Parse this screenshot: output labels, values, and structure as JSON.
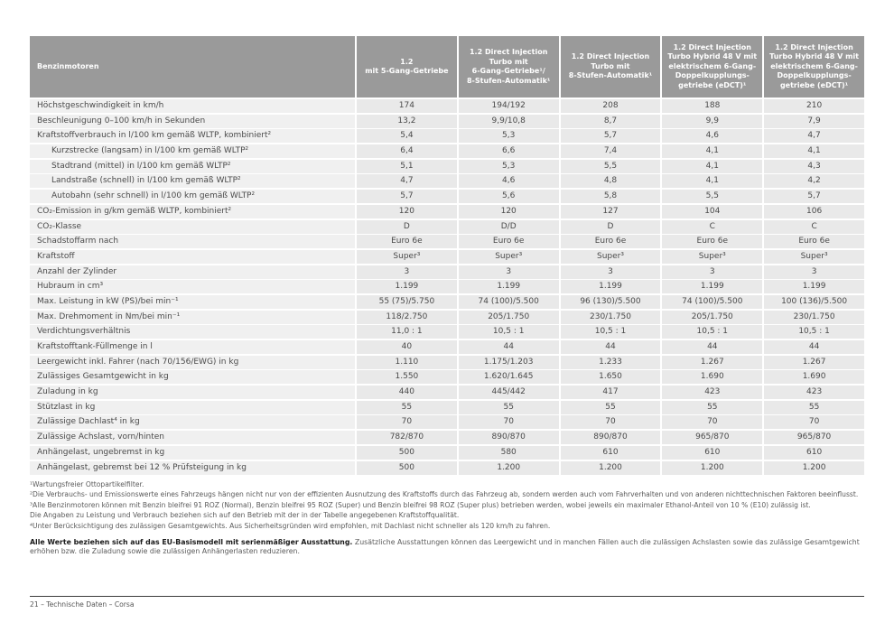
{
  "page": {
    "footer": "21 – Technische Daten – Corsa"
  },
  "colors": {
    "header_bg": "#9a9a9a",
    "header_text": "#ffffff",
    "row_label_bg": "#f0f0f0",
    "row_value_bg": "#e9e9e9",
    "body_text": "#4a4a4a",
    "footnote_text": "#5a5a5a"
  },
  "table": {
    "header": {
      "label": "Benzinmotoren",
      "columns": [
        "1.2\nmit 5-Gang-Getriebe",
        "1.2 Direct Injection\nTurbo mit\n6-Gang-Getriebe¹/\n8-Stufen-Automatik¹",
        "1.2 Direct Injection\nTurbo mit\n8-Stufen-Automatik¹",
        "1.2 Direct Injection\nTurbo Hybrid 48 V mit\nelektrischem 6-Gang-\nDoppelkupplungs-\ngetriebe (eDCT)¹",
        "1.2 Direct Injection\nTurbo Hybrid 48 V mit\nelektrischem 6-Gang-\nDoppelkupplungs-\ngetriebe (eDCT)¹"
      ]
    },
    "rows": [
      {
        "label": "Höchstgeschwindigkeit in km/h",
        "indent": false,
        "values": [
          "174",
          "194/192",
          "208",
          "188",
          "210"
        ]
      },
      {
        "label": "Beschleunigung 0–100 km/h in Sekunden",
        "indent": false,
        "values": [
          "13,2",
          "9,9/10,8",
          "8,7",
          "9,9",
          "7,9"
        ]
      },
      {
        "label": "Kraftstoffverbrauch in l/100 km gemäß WLTP, kombiniert²",
        "indent": false,
        "values": [
          "5,4",
          "5,3",
          "5,7",
          "4,6",
          "4,7"
        ]
      },
      {
        "label": "Kurzstrecke (langsam) in l/100 km gemäß WLTP²",
        "indent": true,
        "values": [
          "6,4",
          "6,6",
          "7,4",
          "4,1",
          "4,1"
        ]
      },
      {
        "label": "Stadtrand (mittel) in l/100 km gemäß WLTP²",
        "indent": true,
        "values": [
          "5,1",
          "5,3",
          "5,5",
          "4,1",
          "4,3"
        ]
      },
      {
        "label": "Landstraße (schnell) in l/100 km gemäß WLTP²",
        "indent": true,
        "values": [
          "4,7",
          "4,6",
          "4,8",
          "4,1",
          "4,2"
        ]
      },
      {
        "label": "Autobahn (sehr schnell) in l/100 km gemäß WLTP²",
        "indent": true,
        "values": [
          "5,7",
          "5,6",
          "5,8",
          "5,5",
          "5,7"
        ]
      },
      {
        "label": "CO₂-Emission in g/km gemäß WLTP, kombiniert²",
        "indent": false,
        "values": [
          "120",
          "120",
          "127",
          "104",
          "106"
        ]
      },
      {
        "label": "CO₂-Klasse",
        "indent": false,
        "values": [
          "D",
          "D/D",
          "D",
          "C",
          "C"
        ]
      },
      {
        "label": "Schadstoffarm nach",
        "indent": false,
        "values": [
          "Euro 6e",
          "Euro 6e",
          "Euro 6e",
          "Euro 6e",
          "Euro 6e"
        ]
      },
      {
        "label": "Kraftstoff",
        "indent": false,
        "values": [
          "Super³",
          "Super³",
          "Super³",
          "Super³",
          "Super³"
        ]
      },
      {
        "label": "Anzahl der Zylinder",
        "indent": false,
        "values": [
          "3",
          "3",
          "3",
          "3",
          "3"
        ]
      },
      {
        "label": "Hubraum in cm³",
        "indent": false,
        "values": [
          "1.199",
          "1.199",
          "1.199",
          "1.199",
          "1.199"
        ]
      },
      {
        "label": "Max. Leistung in kW (PS)/bei min⁻¹",
        "indent": false,
        "values": [
          "55 (75)/5.750",
          "74 (100)/5.500",
          "96 (130)/5.500",
          "74 (100)/5.500",
          "100 (136)/5.500"
        ]
      },
      {
        "label": "Max. Drehmoment in Nm/bei min⁻¹",
        "indent": false,
        "values": [
          "118/2.750",
          "205/1.750",
          "230/1.750",
          "205/1.750",
          "230/1.750"
        ]
      },
      {
        "label": "Verdichtungsverhältnis",
        "indent": false,
        "values": [
          "11,0 : 1",
          "10,5 : 1",
          "10,5 : 1",
          "10,5 : 1",
          "10,5 : 1"
        ]
      },
      {
        "label": "Kraftstofftank-Füllmenge in l",
        "indent": false,
        "values": [
          "40",
          "44",
          "44",
          "44",
          "44"
        ]
      },
      {
        "label": "Leergewicht inkl. Fahrer (nach 70/156/EWG) in kg",
        "indent": false,
        "values": [
          "1.110",
          "1.175/1.203",
          "1.233",
          "1.267",
          "1.267"
        ]
      },
      {
        "label": "Zulässiges Gesamtgewicht in kg",
        "indent": false,
        "values": [
          "1.550",
          "1.620/1.645",
          "1.650",
          "1.690",
          "1.690"
        ]
      },
      {
        "label": "Zuladung in kg",
        "indent": false,
        "values": [
          "440",
          "445/442",
          "417",
          "423",
          "423"
        ]
      },
      {
        "label": "Stützlast in kg",
        "indent": false,
        "values": [
          "55",
          "55",
          "55",
          "55",
          "55"
        ]
      },
      {
        "label": "Zulässige Dachlast⁴ in kg",
        "indent": false,
        "values": [
          "70",
          "70",
          "70",
          "70",
          "70"
        ]
      },
      {
        "label": "Zulässige Achslast, vorn/hinten",
        "indent": false,
        "values": [
          "782/870",
          "890/870",
          "890/870",
          "965/870",
          "965/870"
        ]
      },
      {
        "label": "Anhängelast, ungebremst in kg",
        "indent": false,
        "values": [
          "500",
          "580",
          "610",
          "610",
          "610"
        ]
      },
      {
        "label": "Anhängelast, gebremst bei 12 % Prüfsteigung in kg",
        "indent": false,
        "values": [
          "500",
          "1.200",
          "1.200",
          "1.200",
          "1.200"
        ]
      }
    ]
  },
  "footnotes": [
    "¹Wartungsfreier Ottopartikelfilter.",
    "²Die Verbrauchs- und Emissionswerte eines Fahrzeugs hängen nicht nur von der effizienten Ausnutzung des Kraftstoffs durch das Fahrzeug ab, sondern werden auch vom Fahrverhalten und von anderen nichttechnischen Faktoren beeinflusst.",
    "³Alle Benzinmotoren können mit Benzin bleifrei 91 ROZ (Normal), Benzin bleifrei 95 ROZ (Super) und Benzin bleifrei 98 ROZ (Super plus) betrieben werden, wobei jeweils ein maximaler Ethanol-Anteil von 10 % (E10) zulässig ist.",
    "Die Angaben zu Leistung und Verbrauch beziehen sich auf den Betrieb mit der in der Tabelle angegebenen Kraftstoffqualität.",
    "⁴Unter Berücksichtigung des zulässigen Gesamtgewichts. Aus Sicherheitsgründen wird empfohlen, mit Dachlast nicht schneller als 120 km/h zu fahren."
  ],
  "note": {
    "bold": "Alle Werte beziehen sich auf das EU-Basismodell mit serienmäßiger Ausstattung.",
    "rest": " Zusätzliche Ausstattungen können das Leergewicht und in manchen Fällen auch die zulässigen Achslasten sowie das zulässige Gesamtgewicht erhöhen bzw. die Zuladung sowie die zulässigen Anhängerlasten reduzieren."
  }
}
